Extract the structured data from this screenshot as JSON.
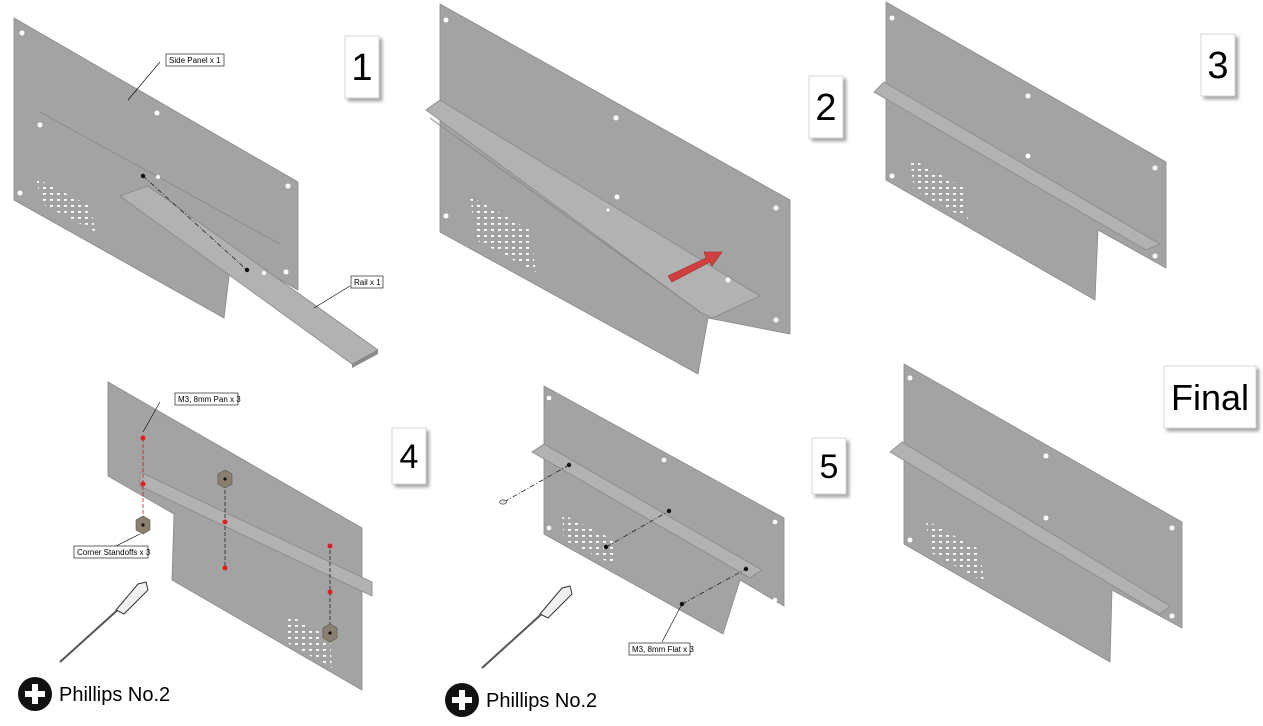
{
  "steps": [
    {
      "number": "1",
      "callouts": {
        "panel": "Side Panel x 1",
        "rail": "Rail x 1"
      }
    },
    {
      "number": "2"
    },
    {
      "number": "3"
    },
    {
      "number": "4",
      "callouts": {
        "screws": "M3, 8mm Pan x 3",
        "standoffs": "Corner Standoffs x 3"
      }
    },
    {
      "number": "5",
      "callouts": {
        "screws": "M3, 8mm Flat x 3"
      }
    },
    {
      "number": "Final"
    }
  ],
  "tools": [
    {
      "label": "Phillips No.2"
    },
    {
      "label": "Phillips No.2"
    }
  ],
  "colors": {
    "panel": "#a3a3a3",
    "panel_edge": "#8a8a8a",
    "hole": "#ffffff",
    "arrow": "#d04040",
    "screw_marker": "#e02020"
  }
}
